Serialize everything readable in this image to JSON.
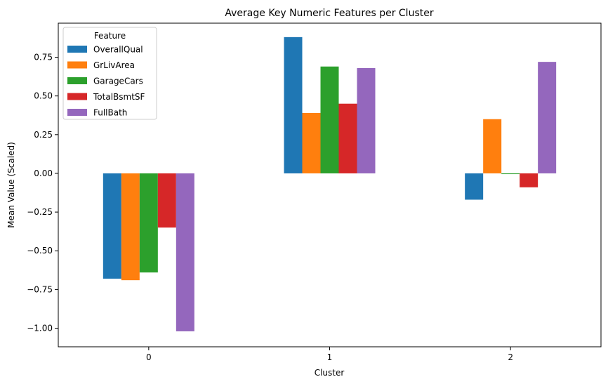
{
  "chart_data": {
    "type": "bar",
    "title": "Average Key Numeric Features per Cluster",
    "xlabel": "Cluster",
    "ylabel": "Mean Value (Scaled)",
    "categories": [
      "0",
      "1",
      "2"
    ],
    "ylim": [
      -1.12,
      0.97
    ],
    "yticks": [
      -1.0,
      -0.75,
      -0.5,
      -0.25,
      0.0,
      0.25,
      0.5,
      0.75
    ],
    "ytick_labels": [
      "−1.00",
      "−0.75",
      "−0.50",
      "−0.25",
      "0.00",
      "0.25",
      "0.50",
      "0.75"
    ],
    "grid": false,
    "legend": {
      "title": "Feature",
      "placement": "top-left"
    },
    "series": [
      {
        "name": "OverallQual",
        "color": "#1f77b4",
        "values": [
          -0.68,
          0.88,
          -0.17
        ]
      },
      {
        "name": "GrLivArea",
        "color": "#ff7f0e",
        "values": [
          -0.69,
          0.39,
          0.35
        ]
      },
      {
        "name": "GarageCars",
        "color": "#2ca02c",
        "values": [
          -0.64,
          0.69,
          -0.005
        ]
      },
      {
        "name": "TotalBsmtSF",
        "color": "#d62728",
        "values": [
          -0.35,
          0.45,
          -0.09
        ]
      },
      {
        "name": "FullBath",
        "color": "#9467bd",
        "values": [
          -1.02,
          0.68,
          0.72
        ]
      }
    ]
  }
}
